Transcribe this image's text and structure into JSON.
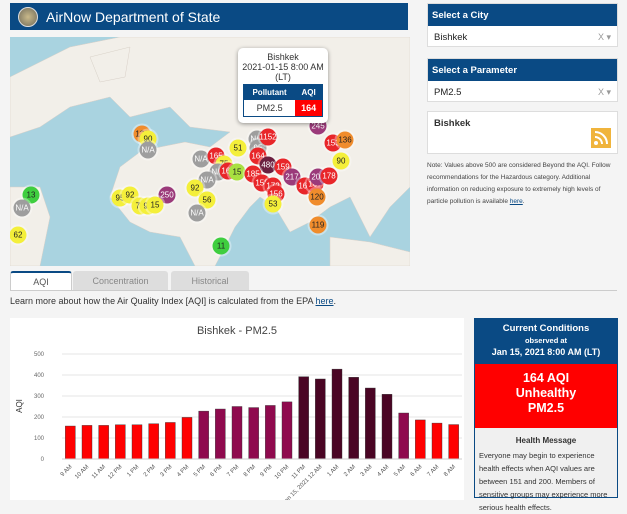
{
  "header": {
    "title": "AirNow Department of State"
  },
  "map": {
    "popup": {
      "city": "Bishkek",
      "datetime": "2021-01-15 8:00 AM",
      "tz": "(LT)",
      "col_pollutant": "Pollutant",
      "col_aqi": "AQI",
      "pollutant": "PM2.5",
      "aqi": "164"
    },
    "markers": [
      {
        "v": "126",
        "c": "#f08c2c"
      },
      {
        "v": "90",
        "c": "#f4ef3a"
      },
      {
        "v": "N/A",
        "c": "#9e9e9e"
      },
      {
        "v": "51",
        "c": "#f4ef3a"
      },
      {
        "v": "N/A",
        "c": "#9e9e9e"
      },
      {
        "v": "95",
        "c": "#9e9e9e"
      },
      {
        "v": "1152",
        "c": "#e8262a"
      },
      {
        "v": "245",
        "c": "#9b3a7a"
      },
      {
        "v": "153",
        "c": "#e8262a"
      },
      {
        "v": "136",
        "c": "#f08c2c"
      },
      {
        "v": "90",
        "c": "#f4ef3a"
      },
      {
        "v": "N/A",
        "c": "#9e9e9e"
      },
      {
        "v": "165",
        "c": "#e8262a"
      },
      {
        "v": "75",
        "c": "#f4ef3a"
      },
      {
        "v": "N/A",
        "c": "#9e9e9e"
      },
      {
        "v": "161",
        "c": "#e8262a"
      },
      {
        "v": "15",
        "c": "#a8e040"
      },
      {
        "v": "N/A",
        "c": "#9e9e9e"
      },
      {
        "v": "164",
        "c": "#e8262a"
      },
      {
        "v": "480",
        "c": "#6b2040"
      },
      {
        "v": "159",
        "c": "#e8262a"
      },
      {
        "v": "185",
        "c": "#e8262a"
      },
      {
        "v": "217",
        "c": "#9b3a7a"
      },
      {
        "v": "158",
        "c": "#e8262a"
      },
      {
        "v": "172",
        "c": "#e8262a"
      },
      {
        "v": "156",
        "c": "#e8262a"
      },
      {
        "v": "53",
        "c": "#f4ef3a"
      },
      {
        "v": "163",
        "c": "#e8262a"
      },
      {
        "v": "167",
        "c": "#e8262a"
      },
      {
        "v": "208",
        "c": "#9b3a7a"
      },
      {
        "v": "178",
        "c": "#e8262a"
      },
      {
        "v": "120",
        "c": "#f08c2c"
      },
      {
        "v": "119",
        "c": "#f08c2c"
      },
      {
        "v": "250",
        "c": "#9b3a7a"
      },
      {
        "v": "95",
        "c": "#f4ef3a"
      },
      {
        "v": "92",
        "c": "#f4ef3a"
      },
      {
        "v": "76",
        "c": "#f4ef3a"
      },
      {
        "v": "98",
        "c": "#f4ef3a"
      },
      {
        "v": "15",
        "c": "#f4ef3a"
      },
      {
        "v": "92",
        "c": "#f4ef3a"
      },
      {
        "v": "56",
        "c": "#f4ef3a"
      },
      {
        "v": "N/A",
        "c": "#9e9e9e"
      },
      {
        "v": "11",
        "c": "#3fce3f"
      },
      {
        "v": "13",
        "c": "#3fce3f"
      },
      {
        "v": "N/A",
        "c": "#9e9e9e"
      },
      {
        "v": "62",
        "c": "#f4ef3a"
      }
    ]
  },
  "tabs": [
    {
      "label": "AQI",
      "active": true
    },
    {
      "label": "Concentration"
    },
    {
      "label": "Historical"
    }
  ],
  "learn": {
    "text": "Learn more about how the Air Quality Index [AQI] is calculated from the EPA ",
    "link": "here",
    "end": "."
  },
  "city_panel": {
    "title": "Select a City",
    "value": "Bishkek",
    "clear": "X"
  },
  "param_panel": {
    "title": "Select a Parameter",
    "value": "PM2.5",
    "clear": "X"
  },
  "rss_panel": {
    "city": "Bishkek",
    "icon": "rss-icon",
    "icon_color": "#f0b43c"
  },
  "note": {
    "text": "Note: Values above 500 are considered Beyond the AQI. Follow recommendations for the Hazardous category. Additional information on reducing exposure to extremely high levels of particle pollution is available ",
    "link": "here",
    "end": "."
  },
  "conditions": {
    "title": "Current Conditions",
    "observed": "observed at",
    "datetime": "Jan 15, 2021 8:00 AM (LT)",
    "aqi": "164 AQI",
    "category": "Unhealthy",
    "pollutant": "PM2.5",
    "color": "#ff0000",
    "health_title": "Health Message",
    "health_text": "Everyone may begin to experience health effects when AQI values are between 151 and 200. Members of sensitive groups may experience more serious health effects."
  },
  "chart_data": {
    "type": "bar",
    "title": "Bishkek - PM2.5",
    "xlabel": "",
    "ylabel": "AQI",
    "ylim": [
      0,
      500
    ],
    "yticks": [
      0,
      100,
      200,
      300,
      400,
      500
    ],
    "grid": true,
    "categories": [
      "9 AM",
      "10 AM",
      "11 AM",
      "12 PM",
      "1 PM",
      "2 PM",
      "3 PM",
      "4 PM",
      "5 PM",
      "6 PM",
      "7 PM",
      "8 PM",
      "9 PM",
      "10 PM",
      "11 PM",
      "Jan 15, 2021 12 AM",
      "1 AM",
      "2 AM",
      "3 AM",
      "4 AM",
      "5 AM",
      "6 AM",
      "7 AM",
      "8 AM"
    ],
    "values": [
      157,
      160,
      160,
      163,
      163,
      168,
      174,
      198,
      228,
      238,
      250,
      245,
      255,
      272,
      392,
      381,
      428,
      389,
      338,
      308,
      219,
      186,
      171,
      164
    ],
    "category_colors": {
      "unhealthy": "#ff0000",
      "very_unhealthy": "#8f0a4e",
      "hazardous": "#4a0524"
    }
  }
}
